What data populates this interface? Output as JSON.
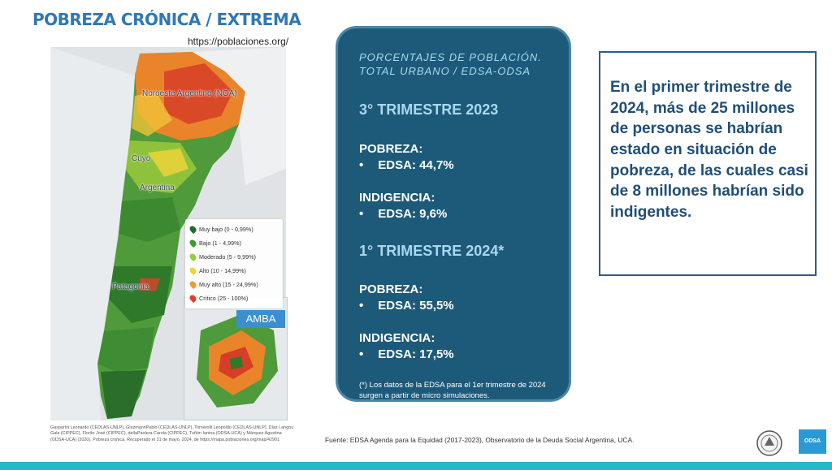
{
  "header": {
    "title": "POBREZA CRÓNICA / EXTREMA",
    "url": "https://poblaciones.org/"
  },
  "map": {
    "labels": {
      "noa": "Noroeste Argentino (NOA)",
      "nuyo": "Cuyo",
      "argentina": "Argentina",
      "patagonia": "Patagonia"
    },
    "legend": [
      {
        "label": "Muy bajo (0 - 0,99%)",
        "color": "#1e6b2a"
      },
      {
        "label": "Bajo (1 - 4,99%)",
        "color": "#3f9a34"
      },
      {
        "label": "Moderado (5 - 9,99%)",
        "color": "#9ccc3c"
      },
      {
        "label": "Alto (10 - 14,99%)",
        "color": "#f2d43a"
      },
      {
        "label": "Muy alto (15 - 24,99%)",
        "color": "#f29a2e"
      },
      {
        "label": "Crítico (25 - 100%)",
        "color": "#e0402a"
      }
    ],
    "amba_label": "AMBA",
    "citation": "Gasparini Leonardo (CEDLAS-UNLP), GluzmannPablo (CEDLAS-UNLP), Tornarolli Leopoldo (CEDLAS-UNLP), Díaz Langou Gala (CIPPEC), Florito José (CIPPEC), dellaPaolera Carola (CIPPEC), Tuñón Ianina (ODSA-UCA) y Márquez Agustina (ODSA-UCA) (2020). Pobreza crónica. Recuperado el 31 de mayo, 2024, de https://mapa.poblaciones.org/map/42901"
  },
  "panel": {
    "subtitle": "PORCENTAJES DE POBLACIÓN. TOTAL URBANO / EDSA-ODSA",
    "period1": "3° TRIMESTRE 2023",
    "period1_pobreza_label": "POBREZA:",
    "period1_pobreza_value": "EDSA: 44,7%",
    "period1_indigencia_label": "INDIGENCIA:",
    "period1_indigencia_value": "EDSA: 9,6%",
    "period2": "1° TRIMESTRE 2024*",
    "period2_pobreza_label": "POBREZA:",
    "period2_pobreza_value": "EDSA: 55,5%",
    "period2_indigencia_label": "INDIGENCIA:",
    "period2_indigencia_value": "EDSA: 17,5%",
    "bullet": "•",
    "note": "(*) Los datos de la EDSA para el 1er trimestre de 2024 surgen a partir de micro simulaciones."
  },
  "rightbox": {
    "text": "En el primer trimestre de 2024, más de 25 millones de personas se habrían estado en situación de pobreza, de las cuales casi de 8 millones habrían sido indigentes."
  },
  "footer": {
    "source": "Fuente: EDSA Agenda para la Equidad (2017-2023), Observatorio de la Deuda Social Argentina, UCA.",
    "logo2_text": "ODSA"
  },
  "colors": {
    "title": "#2f78b4",
    "panel_bg": "#1d5a7a",
    "panel_accent": "#a9d8f0",
    "rightbox_text": "#1f4e78",
    "bottom_bar": "#24b9c9"
  }
}
